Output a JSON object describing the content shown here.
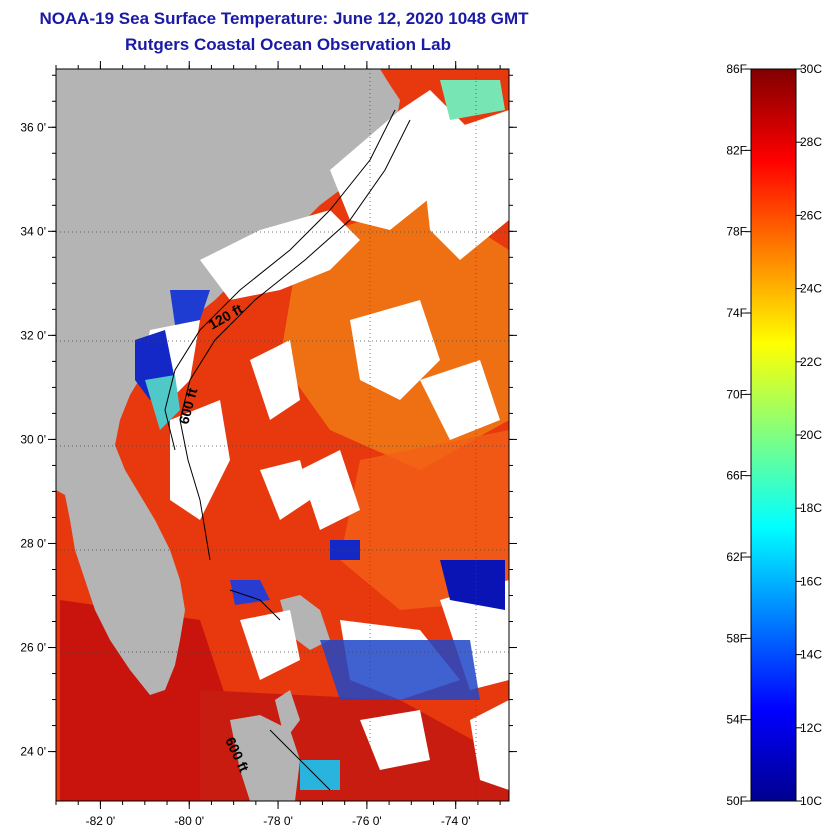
{
  "title_line1": "NOAA-19 Sea Surface Temperature:  June 12, 2020 1048 GMT",
  "title_line2": "Rutgers Coastal Ocean Observation Lab",
  "lat_labels": [
    "36 0'",
    "34 0'",
    "32 0'",
    "30 0'",
    "28 0'",
    "26 0'",
    "24 0'"
  ],
  "lat_values": [
    36,
    34,
    32,
    30,
    28,
    26,
    24
  ],
  "lon_labels": [
    "-82 0'",
    "-80 0'",
    "-78 0'",
    "-76 0'",
    "-74 0'"
  ],
  "lon_values": [
    -82,
    -80,
    -78,
    -76,
    -74
  ],
  "contour_labels": {
    "c120": "120 ft",
    "c600a": "600 ft",
    "c600b": "600 ft"
  },
  "colorbar": {
    "f_labels": [
      "86F",
      "82F",
      "78F",
      "74F",
      "70F",
      "66F",
      "62F",
      "58F",
      "54F",
      "50F"
    ],
    "c_labels": [
      "30C",
      "28C",
      "26C",
      "24C",
      "22C",
      "20C",
      "18C",
      "16C",
      "14C",
      "12C",
      "10C"
    ],
    "min_c": 10,
    "max_c": 30,
    "colors": [
      "#00008f",
      "#0000ff",
      "#0080ff",
      "#00ffff",
      "#80ff80",
      "#ffff00",
      "#ff8000",
      "#ff0000",
      "#800000"
    ]
  },
  "colors": {
    "land": "#b4b4b4",
    "title": "#1a1aa6",
    "cloud": "#ffffff",
    "ocean_warm": "#f03c14"
  }
}
